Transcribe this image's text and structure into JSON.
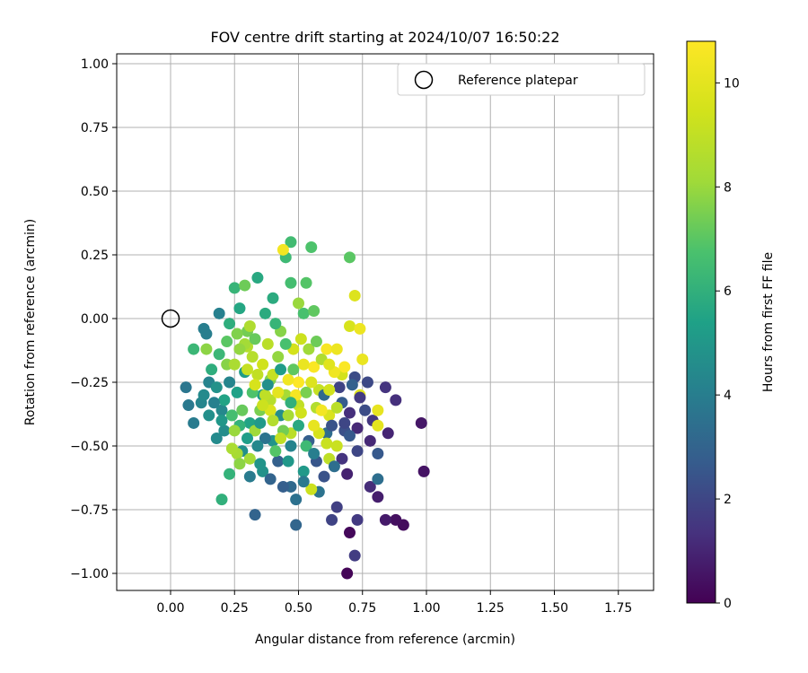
{
  "chart_data": {
    "type": "scatter",
    "title": "FOV centre drift starting at 2024/10/07 16:50:22",
    "xlabel": "Angular distance from reference (arcmin)",
    "ylabel": "Rotation from reference (arcmin)",
    "xlim": [
      -0.21,
      1.9
    ],
    "ylim": [
      -1.06,
      1.04
    ],
    "xticks": [
      "0.00",
      "0.25",
      "0.50",
      "0.75",
      "1.00",
      "1.25",
      "1.50",
      "1.75"
    ],
    "yticks": [
      "1.00",
      "0.75",
      "0.50",
      "0.25",
      "0.00",
      "−0.25",
      "−0.50",
      "−0.75",
      "−1.00"
    ],
    "grid": true,
    "legend": {
      "placement": "top-right",
      "entries": [
        "Reference platepar"
      ]
    },
    "reference_point": {
      "x": 0.0,
      "y": 0.0,
      "label": "Reference platepar"
    },
    "colorbar": {
      "label": "Hours from first FF file",
      "min": 0,
      "max": 10.8,
      "ticks": [
        "0",
        "2",
        "4",
        "6",
        "8",
        "10"
      ],
      "colormap": "viridis"
    },
    "colors": {
      "grid": "#b0b0b0",
      "axes": "#000000",
      "reference_marker": "#000000"
    },
    "points": [
      {
        "x": 0.69,
        "y": -1.0,
        "c": 0.1
      },
      {
        "x": 0.7,
        "y": -0.84,
        "c": 0.2
      },
      {
        "x": 0.91,
        "y": -0.81,
        "c": 0.3
      },
      {
        "x": 0.88,
        "y": -0.79,
        "c": 0.4
      },
      {
        "x": 0.99,
        "y": -0.6,
        "c": 0.5
      },
      {
        "x": 0.98,
        "y": -0.41,
        "c": 0.6
      },
      {
        "x": 0.84,
        "y": -0.79,
        "c": 0.7
      },
      {
        "x": 0.81,
        "y": -0.7,
        "c": 0.8
      },
      {
        "x": 0.69,
        "y": -0.61,
        "c": 0.9
      },
      {
        "x": 0.85,
        "y": -0.45,
        "c": 1.0
      },
      {
        "x": 0.78,
        "y": -0.48,
        "c": 1.1
      },
      {
        "x": 0.78,
        "y": -0.66,
        "c": 1.2
      },
      {
        "x": 0.88,
        "y": -0.32,
        "c": 1.3
      },
      {
        "x": 0.84,
        "y": -0.27,
        "c": 1.4
      },
      {
        "x": 0.79,
        "y": -0.4,
        "c": 1.5
      },
      {
        "x": 0.73,
        "y": -0.79,
        "c": 1.6
      },
      {
        "x": 0.72,
        "y": -0.93,
        "c": 1.7
      },
      {
        "x": 0.65,
        "y": -0.74,
        "c": 1.8
      },
      {
        "x": 0.63,
        "y": -0.79,
        "c": 1.9
      },
      {
        "x": 0.73,
        "y": -0.52,
        "c": 2.0
      },
      {
        "x": 0.77,
        "y": -0.25,
        "c": 2.1
      },
      {
        "x": 0.72,
        "y": -0.23,
        "c": 2.2
      },
      {
        "x": 0.68,
        "y": -0.44,
        "c": 2.3
      },
      {
        "x": 0.6,
        "y": -0.62,
        "c": 2.4
      },
      {
        "x": 0.57,
        "y": -0.56,
        "c": 2.5
      },
      {
        "x": 0.81,
        "y": -0.53,
        "c": 2.6
      },
      {
        "x": 0.67,
        "y": -0.33,
        "c": 2.7
      },
      {
        "x": 0.54,
        "y": -0.48,
        "c": 2.8
      },
      {
        "x": 0.42,
        "y": -0.56,
        "c": 2.9
      },
      {
        "x": 0.33,
        "y": -0.77,
        "c": 3.0
      },
      {
        "x": 0.49,
        "y": -0.81,
        "c": 3.1
      },
      {
        "x": 0.47,
        "y": -0.66,
        "c": 3.2
      },
      {
        "x": 0.61,
        "y": -0.45,
        "c": 3.3
      },
      {
        "x": 0.81,
        "y": -0.63,
        "c": 3.4
      },
      {
        "x": 0.49,
        "y": -0.71,
        "c": 3.5
      },
      {
        "x": 0.58,
        "y": -0.68,
        "c": 3.6
      },
      {
        "x": 0.06,
        "y": -0.27,
        "c": 3.7
      },
      {
        "x": 0.07,
        "y": -0.34,
        "c": 3.8
      },
      {
        "x": 0.09,
        "y": -0.41,
        "c": 3.9
      },
      {
        "x": 0.13,
        "y": -0.04,
        "c": 4.0
      },
      {
        "x": 0.14,
        "y": -0.06,
        "c": 4.0
      },
      {
        "x": 0.19,
        "y": 0.02,
        "c": 4.1
      },
      {
        "x": 0.15,
        "y": -0.25,
        "c": 4.2
      },
      {
        "x": 0.12,
        "y": -0.33,
        "c": 4.3
      },
      {
        "x": 0.2,
        "y": -0.36,
        "c": 4.4
      },
      {
        "x": 0.18,
        "y": -0.47,
        "c": 4.5
      },
      {
        "x": 0.21,
        "y": -0.44,
        "c": 4.6
      },
      {
        "x": 0.28,
        "y": -0.52,
        "c": 4.7
      },
      {
        "x": 0.36,
        "y": -0.6,
        "c": 4.8
      },
      {
        "x": 0.4,
        "y": -0.48,
        "c": 4.9
      },
      {
        "x": 0.46,
        "y": -0.56,
        "c": 5.0
      },
      {
        "x": 0.52,
        "y": -0.6,
        "c": 5.1
      },
      {
        "x": 0.29,
        "y": -0.21,
        "c": 5.2
      },
      {
        "x": 0.36,
        "y": -0.3,
        "c": 5.3
      },
      {
        "x": 0.26,
        "y": -0.29,
        "c": 5.4
      },
      {
        "x": 0.31,
        "y": -0.41,
        "c": 5.5
      },
      {
        "x": 0.27,
        "y": 0.04,
        "c": 5.6
      },
      {
        "x": 0.34,
        "y": 0.16,
        "c": 5.7
      },
      {
        "x": 0.4,
        "y": 0.08,
        "c": 5.8
      },
      {
        "x": 0.23,
        "y": -0.02,
        "c": 5.9
      },
      {
        "x": 0.2,
        "y": -0.71,
        "c": 6.0
      },
      {
        "x": 0.23,
        "y": -0.61,
        "c": 6.1
      },
      {
        "x": 0.25,
        "y": 0.12,
        "c": 6.2
      },
      {
        "x": 0.09,
        "y": -0.12,
        "c": 6.3
      },
      {
        "x": 0.45,
        "y": 0.24,
        "c": 6.4
      },
      {
        "x": 0.47,
        "y": 0.3,
        "c": 6.5
      },
      {
        "x": 0.47,
        "y": 0.14,
        "c": 6.6
      },
      {
        "x": 0.52,
        "y": 0.02,
        "c": 6.7
      },
      {
        "x": 0.55,
        "y": 0.28,
        "c": 6.8
      },
      {
        "x": 0.53,
        "y": 0.14,
        "c": 6.9
      },
      {
        "x": 0.7,
        "y": 0.24,
        "c": 7.0
      },
      {
        "x": 0.56,
        "y": 0.03,
        "c": 7.1
      },
      {
        "x": 0.29,
        "y": 0.13,
        "c": 7.3
      },
      {
        "x": 0.3,
        "y": -0.05,
        "c": 7.4
      },
      {
        "x": 0.35,
        "y": -0.36,
        "c": 7.5
      },
      {
        "x": 0.39,
        "y": -0.24,
        "c": 7.6
      },
      {
        "x": 0.22,
        "y": -0.18,
        "c": 7.7
      },
      {
        "x": 0.14,
        "y": -0.12,
        "c": 7.8
      },
      {
        "x": 0.42,
        "y": -0.15,
        "c": 7.9
      },
      {
        "x": 0.5,
        "y": 0.06,
        "c": 8.0
      },
      {
        "x": 0.33,
        "y": -0.44,
        "c": 8.1
      },
      {
        "x": 0.31,
        "y": -0.55,
        "c": 8.2
      },
      {
        "x": 0.26,
        "y": -0.53,
        "c": 8.3
      },
      {
        "x": 0.24,
        "y": -0.51,
        "c": 8.4
      },
      {
        "x": 0.31,
        "y": -0.03,
        "c": 8.5
      },
      {
        "x": 0.3,
        "y": -0.11,
        "c": 8.6
      },
      {
        "x": 0.39,
        "y": -0.32,
        "c": 8.7
      },
      {
        "x": 0.47,
        "y": -0.45,
        "c": 8.8
      },
      {
        "x": 0.37,
        "y": -0.3,
        "c": 8.9
      },
      {
        "x": 0.5,
        "y": -0.34,
        "c": 9.0
      },
      {
        "x": 0.58,
        "y": -0.28,
        "c": 9.1
      },
      {
        "x": 0.61,
        "y": -0.49,
        "c": 9.2
      },
      {
        "x": 0.55,
        "y": -0.67,
        "c": 9.3
      },
      {
        "x": 0.51,
        "y": -0.37,
        "c": 9.4
      },
      {
        "x": 0.67,
        "y": -0.22,
        "c": 9.5
      },
      {
        "x": 0.7,
        "y": -0.03,
        "c": 9.6
      },
      {
        "x": 0.62,
        "y": -0.38,
        "c": 9.7
      },
      {
        "x": 0.72,
        "y": 0.09,
        "c": 9.8
      },
      {
        "x": 0.74,
        "y": -0.3,
        "c": 9.9
      },
      {
        "x": 0.81,
        "y": -0.42,
        "c": 10.0
      },
      {
        "x": 0.81,
        "y": -0.36,
        "c": 10.1
      },
      {
        "x": 0.75,
        "y": -0.16,
        "c": 10.2
      },
      {
        "x": 0.74,
        "y": -0.04,
        "c": 10.3
      },
      {
        "x": 0.64,
        "y": -0.21,
        "c": 10.4
      },
      {
        "x": 0.44,
        "y": 0.27,
        "c": 10.5
      },
      {
        "x": 0.61,
        "y": -0.12,
        "c": 10.6
      },
      {
        "x": 0.56,
        "y": -0.19,
        "c": 10.7
      },
      {
        "x": 0.5,
        "y": -0.25,
        "c": 10.8
      },
      {
        "x": 0.28,
        "y": -0.36,
        "c": 7.2
      },
      {
        "x": 0.32,
        "y": -0.29,
        "c": 6.8
      },
      {
        "x": 0.35,
        "y": -0.41,
        "c": 5.1
      },
      {
        "x": 0.43,
        "y": -0.38,
        "c": 4.6
      },
      {
        "x": 0.45,
        "y": -0.3,
        "c": 8.3
      },
      {
        "x": 0.4,
        "y": -0.22,
        "c": 9.1
      },
      {
        "x": 0.38,
        "y": -0.1,
        "c": 8.8
      },
      {
        "x": 0.43,
        "y": -0.05,
        "c": 7.7
      },
      {
        "x": 0.48,
        "y": -0.12,
        "c": 9.5
      },
      {
        "x": 0.52,
        "y": -0.18,
        "c": 10.2
      },
      {
        "x": 0.55,
        "y": -0.25,
        "c": 9.8
      },
      {
        "x": 0.57,
        "y": -0.35,
        "c": 8.6
      },
      {
        "x": 0.6,
        "y": -0.3,
        "c": 3.2
      },
      {
        "x": 0.63,
        "y": -0.42,
        "c": 2.4
      },
      {
        "x": 0.66,
        "y": -0.27,
        "c": 1.9
      },
      {
        "x": 0.7,
        "y": -0.37,
        "c": 1.3
      },
      {
        "x": 0.65,
        "y": -0.5,
        "c": 9.2
      },
      {
        "x": 0.62,
        "y": -0.55,
        "c": 8.9
      },
      {
        "x": 0.58,
        "y": -0.45,
        "c": 9.6
      },
      {
        "x": 0.53,
        "y": -0.5,
        "c": 6.4
      },
      {
        "x": 0.5,
        "y": -0.42,
        "c": 5.7
      },
      {
        "x": 0.47,
        "y": -0.5,
        "c": 4.2
      },
      {
        "x": 0.44,
        "y": -0.44,
        "c": 7.4
      },
      {
        "x": 0.41,
        "y": -0.52,
        "c": 6.9
      },
      {
        "x": 0.37,
        "y": -0.47,
        "c": 3.6
      },
      {
        "x": 0.34,
        "y": -0.5,
        "c": 4.4
      },
      {
        "x": 0.3,
        "y": -0.47,
        "c": 5.3
      },
      {
        "x": 0.27,
        "y": -0.42,
        "c": 6.1
      },
      {
        "x": 0.24,
        "y": -0.38,
        "c": 6.6
      },
      {
        "x": 0.21,
        "y": -0.32,
        "c": 5.5
      },
      {
        "x": 0.18,
        "y": -0.27,
        "c": 4.8
      },
      {
        "x": 0.16,
        "y": -0.2,
        "c": 5.9
      },
      {
        "x": 0.19,
        "y": -0.14,
        "c": 6.3
      },
      {
        "x": 0.22,
        "y": -0.09,
        "c": 7.0
      },
      {
        "x": 0.26,
        "y": -0.06,
        "c": 7.6
      },
      {
        "x": 0.29,
        "y": -0.1,
        "c": 8.2
      },
      {
        "x": 0.32,
        "y": -0.15,
        "c": 8.7
      },
      {
        "x": 0.34,
        "y": -0.22,
        "c": 9.0
      },
      {
        "x": 0.36,
        "y": -0.18,
        "c": 9.4
      },
      {
        "x": 0.39,
        "y": -0.36,
        "c": 9.7
      },
      {
        "x": 0.42,
        "y": -0.29,
        "c": 10.0
      },
      {
        "x": 0.46,
        "y": -0.24,
        "c": 10.4
      },
      {
        "x": 0.49,
        "y": -0.3,
        "c": 10.6
      },
      {
        "x": 0.51,
        "y": -0.08,
        "c": 9.3
      },
      {
        "x": 0.54,
        "y": -0.12,
        "c": 8.1
      },
      {
        "x": 0.57,
        "y": -0.09,
        "c": 7.3
      },
      {
        "x": 0.59,
        "y": -0.16,
        "c": 8.5
      },
      {
        "x": 0.62,
        "y": -0.18,
        "c": 9.9
      },
      {
        "x": 0.65,
        "y": -0.12,
        "c": 10.3
      },
      {
        "x": 0.68,
        "y": -0.19,
        "c": 10.7
      },
      {
        "x": 0.71,
        "y": -0.26,
        "c": 2.9
      },
      {
        "x": 0.74,
        "y": -0.31,
        "c": 1.6
      },
      {
        "x": 0.76,
        "y": -0.36,
        "c": 2.2
      },
      {
        "x": 0.73,
        "y": -0.43,
        "c": 1.1
      },
      {
        "x": 0.7,
        "y": -0.46,
        "c": 2.6
      },
      {
        "x": 0.67,
        "y": -0.55,
        "c": 1.4
      },
      {
        "x": 0.64,
        "y": -0.58,
        "c": 3.4
      },
      {
        "x": 0.56,
        "y": -0.53,
        "c": 4.0
      },
      {
        "x": 0.52,
        "y": -0.64,
        "c": 3.8
      },
      {
        "x": 0.44,
        "y": -0.66,
        "c": 2.8
      },
      {
        "x": 0.39,
        "y": -0.63,
        "c": 3.0
      },
      {
        "x": 0.35,
        "y": -0.57,
        "c": 4.9
      },
      {
        "x": 0.31,
        "y": -0.62,
        "c": 3.9
      },
      {
        "x": 0.27,
        "y": -0.57,
        "c": 7.8
      },
      {
        "x": 0.25,
        "y": -0.44,
        "c": 8.0
      },
      {
        "x": 0.23,
        "y": -0.25,
        "c": 4.3
      },
      {
        "x": 0.2,
        "y": -0.4,
        "c": 5.0
      },
      {
        "x": 0.17,
        "y": -0.33,
        "c": 4.1
      },
      {
        "x": 0.13,
        "y": -0.3,
        "c": 4.5
      },
      {
        "x": 0.15,
        "y": -0.38,
        "c": 4.7
      },
      {
        "x": 0.25,
        "y": -0.18,
        "c": 8.4
      },
      {
        "x": 0.27,
        "y": -0.12,
        "c": 7.9
      },
      {
        "x": 0.3,
        "y": -0.2,
        "c": 9.1
      },
      {
        "x": 0.33,
        "y": -0.26,
        "c": 9.6
      },
      {
        "x": 0.36,
        "y": -0.34,
        "c": 9.3
      },
      {
        "x": 0.4,
        "y": -0.4,
        "c": 8.6
      },
      {
        "x": 0.43,
        "y": -0.47,
        "c": 9.0
      },
      {
        "x": 0.46,
        "y": -0.38,
        "c": 8.3
      },
      {
        "x": 0.48,
        "y": -0.2,
        "c": 7.1
      },
      {
        "x": 0.45,
        "y": -0.1,
        "c": 6.7
      },
      {
        "x": 0.41,
        "y": -0.02,
        "c": 6.2
      },
      {
        "x": 0.37,
        "y": 0.02,
        "c": 5.8
      },
      {
        "x": 0.33,
        "y": -0.08,
        "c": 7.2
      },
      {
        "x": 0.56,
        "y": -0.42,
        "c": 10.1
      },
      {
        "x": 0.59,
        "y": -0.36,
        "c": 10.5
      },
      {
        "x": 0.62,
        "y": -0.28,
        "c": 9.4
      },
      {
        "x": 0.65,
        "y": -0.35,
        "c": 8.8
      },
      {
        "x": 0.68,
        "y": -0.41,
        "c": 2.0
      },
      {
        "x": 0.53,
        "y": -0.29,
        "c": 7.5
      },
      {
        "x": 0.47,
        "y": -0.33,
        "c": 6.0
      },
      {
        "x": 0.43,
        "y": -0.2,
        "c": 5.2
      },
      {
        "x": 0.38,
        "y": -0.26,
        "c": 4.7
      }
    ]
  }
}
